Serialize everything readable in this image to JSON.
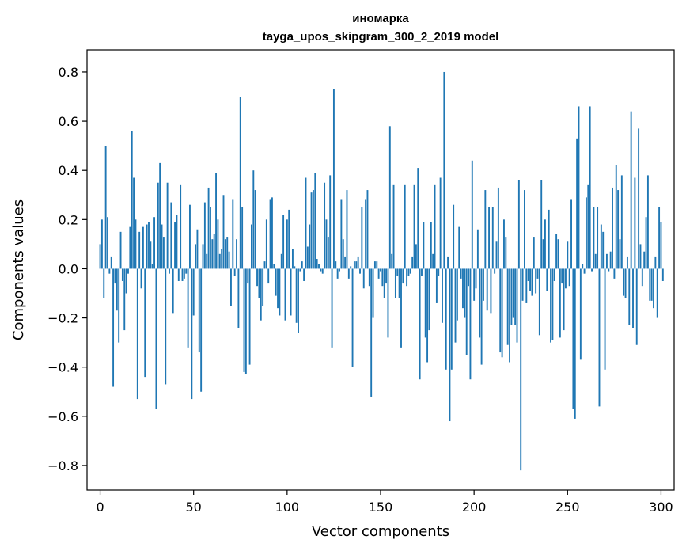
{
  "chart_data": {
    "type": "bar",
    "title": "иномарка",
    "subtitle": "tayga_upos_skipgram_300_2_2019 model",
    "xlabel": "Vector components",
    "ylabel": "Components values",
    "xlim": [
      -7,
      307
    ],
    "ylim": [
      -0.9,
      0.89
    ],
    "xticks": [
      0,
      50,
      100,
      150,
      200,
      250,
      300
    ],
    "xtick_labels": [
      "0",
      "50",
      "100",
      "150",
      "200",
      "250",
      "300"
    ],
    "yticks": [
      -0.8,
      -0.6,
      -0.4,
      -0.2,
      0.0,
      0.2,
      0.4,
      0.6,
      0.8
    ],
    "ytick_labels": [
      "−0.8",
      "−0.6",
      "−0.4",
      "−0.2",
      "0.0",
      "0.2",
      "0.4",
      "0.6",
      "0.8"
    ],
    "bar_color": "#1f77b4",
    "values": [
      0.1,
      0.2,
      -0.12,
      0.5,
      0.21,
      -0.02,
      0.05,
      -0.48,
      -0.06,
      -0.17,
      -0.3,
      0.15,
      -0.05,
      -0.25,
      -0.1,
      -0.02,
      0.17,
      0.56,
      0.37,
      0.2,
      -0.53,
      0.15,
      -0.08,
      0.17,
      -0.44,
      0.18,
      0.19,
      0.11,
      0.02,
      0.21,
      -0.57,
      0.35,
      0.43,
      0.18,
      0.13,
      -0.47,
      0.35,
      -0.02,
      0.27,
      -0.18,
      0.19,
      0.22,
      -0.05,
      0.34,
      -0.05,
      -0.04,
      -0.02,
      -0.32,
      0.26,
      -0.53,
      -0.19,
      0.1,
      0.16,
      -0.34,
      -0.5,
      0.1,
      0.27,
      0.06,
      0.33,
      0.25,
      0.12,
      0.14,
      0.39,
      0.2,
      0.06,
      0.08,
      0.3,
      0.12,
      0.13,
      0.07,
      -0.15,
      0.28,
      -0.03,
      0.12,
      -0.24,
      0.7,
      0.25,
      -0.42,
      -0.43,
      -0.06,
      -0.39,
      0.18,
      0.4,
      0.32,
      -0.07,
      -0.12,
      -0.21,
      -0.15,
      0.03,
      0.2,
      -0.06,
      0.28,
      0.29,
      0.02,
      -0.11,
      -0.16,
      -0.19,
      0.06,
      0.22,
      -0.21,
      0.2,
      0.24,
      -0.19,
      0.08,
      0.01,
      -0.22,
      -0.26,
      -0.01,
      0.03,
      -0.05,
      0.37,
      0.09,
      0.18,
      0.31,
      0.32,
      0.39,
      0.04,
      0.02,
      -0.01,
      -0.02,
      0.35,
      0.2,
      0.13,
      0.38,
      -0.32,
      0.73,
      0.03,
      -0.04,
      -0.01,
      0.28,
      0.12,
      0.05,
      0.32,
      -0.04,
      0.01,
      -0.4,
      0.03,
      0.03,
      0.05,
      -0.02,
      0.25,
      -0.08,
      0.28,
      0.32,
      -0.07,
      -0.52,
      -0.2,
      0.03,
      0.03,
      -0.04,
      -0.01,
      -0.07,
      -0.12,
      -0.06,
      -0.28,
      0.58,
      0.06,
      0.34,
      -0.12,
      -0.03,
      -0.12,
      -0.32,
      -0.06,
      0.34,
      -0.07,
      -0.03,
      -0.02,
      0.05,
      0.34,
      0.1,
      0.41,
      -0.45,
      -0.03,
      0.19,
      -0.28,
      -0.38,
      -0.25,
      0.19,
      0.06,
      0.34,
      -0.14,
      -0.03,
      0.37,
      -0.22,
      0.8,
      -0.41,
      0.05,
      -0.62,
      -0.41,
      0.26,
      -0.3,
      -0.21,
      0.17,
      -0.04,
      -0.16,
      -0.2,
      -0.35,
      -0.07,
      -0.45,
      0.44,
      -0.13,
      -0.08,
      0.16,
      -0.28,
      -0.39,
      -0.13,
      0.32,
      -0.17,
      0.25,
      -0.18,
      0.25,
      -0.02,
      0.11,
      0.33,
      -0.34,
      -0.36,
      0.2,
      0.13,
      -0.31,
      -0.38,
      -0.23,
      -0.2,
      -0.23,
      -0.3,
      0.36,
      -0.82,
      -0.13,
      0.32,
      -0.14,
      -0.05,
      -0.09,
      -0.11,
      0.13,
      -0.1,
      -0.04,
      -0.27,
      0.36,
      0.12,
      0.2,
      -0.09,
      0.24,
      -0.3,
      -0.29,
      -0.05,
      0.14,
      0.12,
      -0.28,
      -0.06,
      -0.25,
      -0.08,
      0.11,
      -0.07,
      0.28,
      -0.57,
      -0.61,
      0.53,
      0.66,
      -0.37,
      0.02,
      -0.02,
      0.29,
      0.34,
      0.66,
      -0.01,
      0.25,
      0.06,
      0.25,
      -0.56,
      0.18,
      0.15,
      -0.41,
      0.06,
      -0.01,
      0.07,
      0.33,
      -0.04,
      0.42,
      0.32,
      0.12,
      0.38,
      -0.11,
      -0.12,
      0.05,
      -0.23,
      0.64,
      -0.24,
      0.37,
      -0.31,
      0.57,
      0.1,
      -0.07,
      0.07,
      0.21,
      0.38,
      -0.13,
      -0.13,
      -0.16,
      0.05,
      -0.2,
      0.25,
      0.19,
      -0.05
    ]
  }
}
